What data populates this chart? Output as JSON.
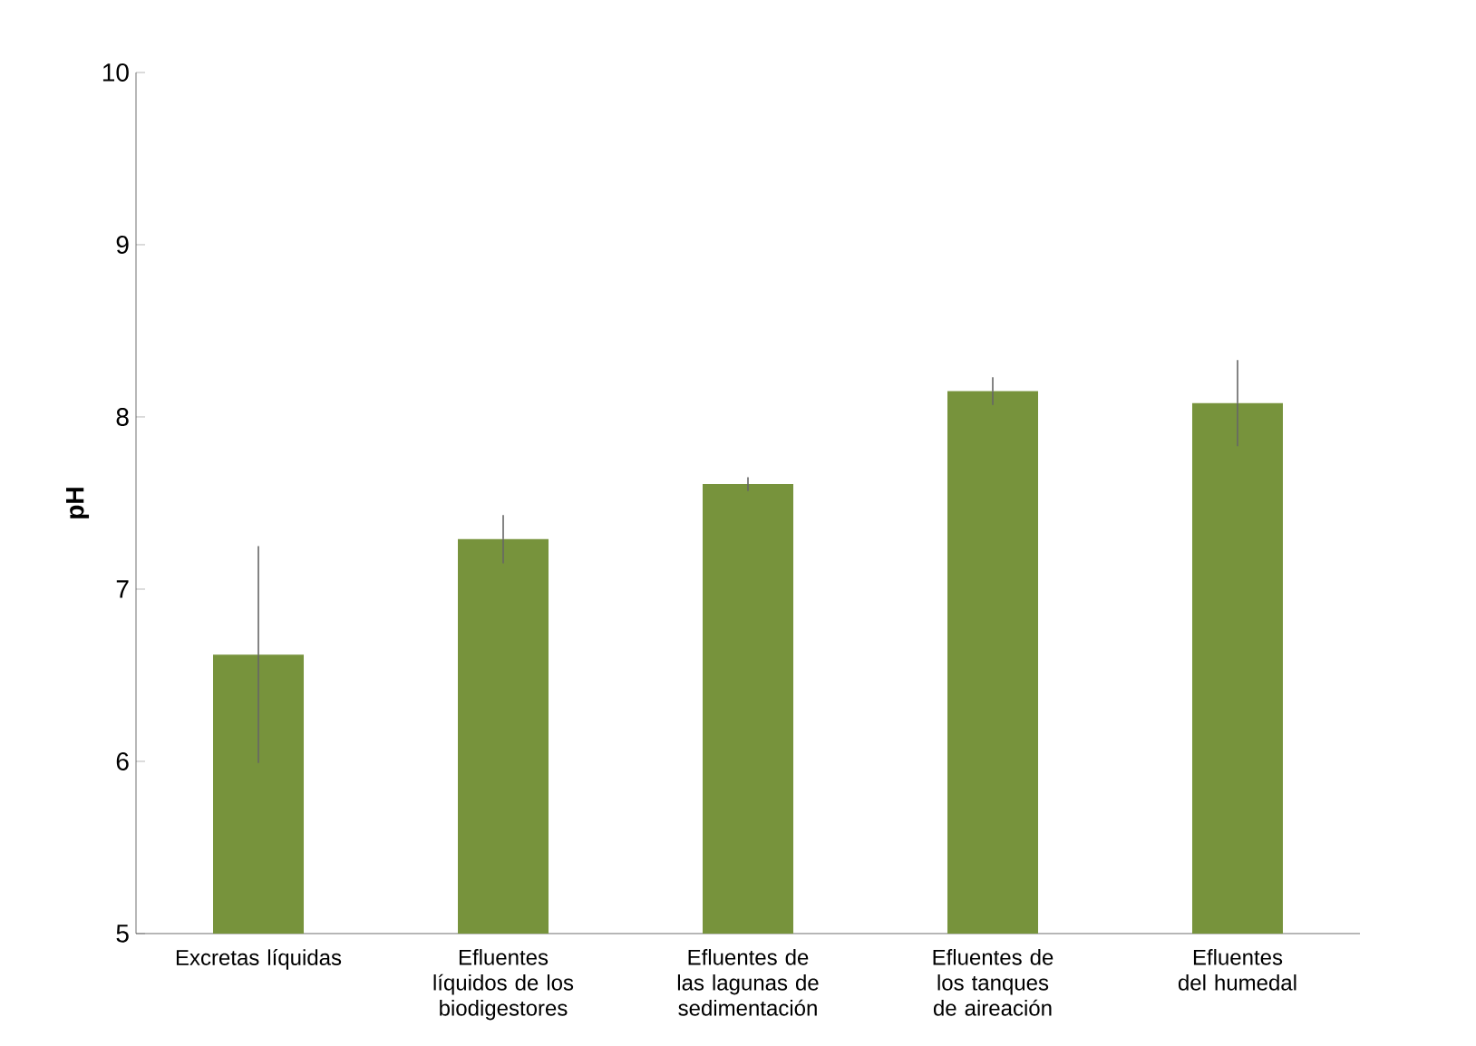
{
  "chart_data": {
    "type": "bar",
    "ylabel": "pH",
    "categories": [
      "Excretas líquidas",
      "Efluentes líquidos de los biodigestores",
      "Efluentes de las lagunas de sedimentación",
      "Efluentes de los tanques de aireación",
      "Efluentes del humedal"
    ],
    "values": [
      6.62,
      7.29,
      7.61,
      8.15,
      8.08
    ],
    "errors": [
      0.63,
      0.14,
      0.04,
      0.08,
      0.25
    ],
    "color": "#77933c",
    "ylim": [
      5,
      10
    ],
    "yticks": [
      5,
      6,
      7,
      8,
      9,
      10
    ]
  }
}
